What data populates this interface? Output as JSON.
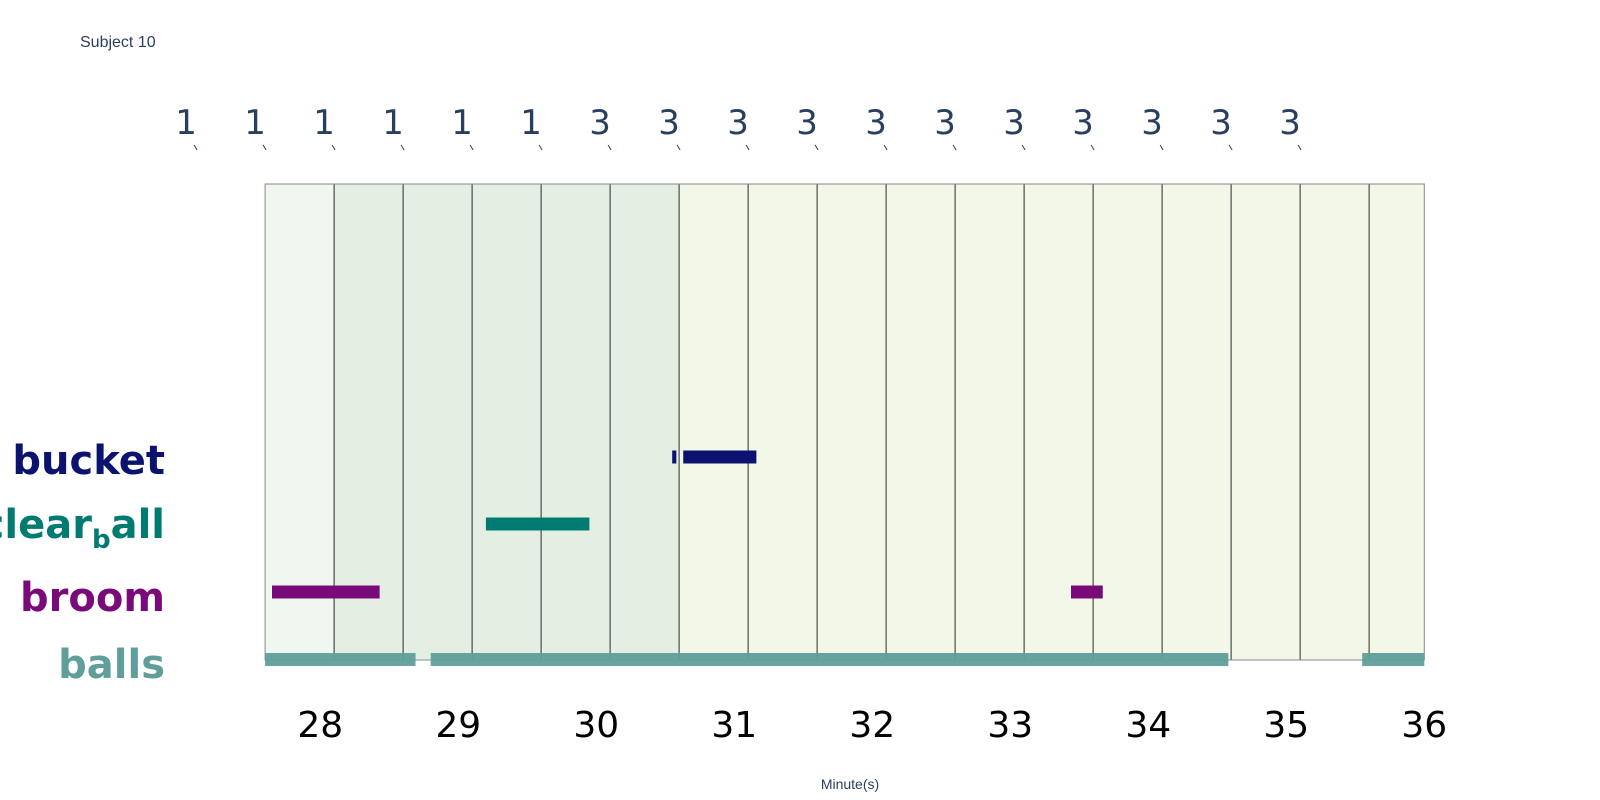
{
  "subject": "Subject 10",
  "chart_data": {
    "type": "timeline",
    "xlabel": "Minute(s)",
    "xlim": [
      27.6,
      36.1
    ],
    "x_ticks": [
      28,
      29,
      30,
      31,
      32,
      33,
      34,
      35,
      36
    ],
    "segments": [
      {
        "start": 27.6,
        "end": 28.1,
        "label": "1",
        "fill": "#f0f7f0"
      },
      {
        "start": 28.1,
        "end": 28.6,
        "label": "1",
        "fill": "#e4efe4"
      },
      {
        "start": 28.6,
        "end": 29.1,
        "label": "1",
        "fill": "#e4efe4"
      },
      {
        "start": 29.1,
        "end": 29.6,
        "label": "1",
        "fill": "#e4efe4"
      },
      {
        "start": 29.6,
        "end": 30.1,
        "label": "1",
        "fill": "#e4efe4"
      },
      {
        "start": 30.1,
        "end": 30.6,
        "label": "1",
        "fill": "#e4efe4"
      },
      {
        "start": 30.6,
        "end": 31.1,
        "label": "3",
        "fill": "#f2f7e7"
      },
      {
        "start": 31.1,
        "end": 31.6,
        "label": "3",
        "fill": "#f2f7e7"
      },
      {
        "start": 31.6,
        "end": 32.1,
        "label": "3",
        "fill": "#f2f7e7"
      },
      {
        "start": 32.1,
        "end": 32.6,
        "label": "3",
        "fill": "#f2f7e7"
      },
      {
        "start": 32.6,
        "end": 33.1,
        "label": "3",
        "fill": "#f2f7e7"
      },
      {
        "start": 33.1,
        "end": 33.6,
        "label": "3",
        "fill": "#f2f7e7"
      },
      {
        "start": 33.6,
        "end": 34.1,
        "label": "3",
        "fill": "#f2f7e7"
      },
      {
        "start": 34.1,
        "end": 34.6,
        "label": "3",
        "fill": "#f2f7e7"
      },
      {
        "start": 34.6,
        "end": 35.1,
        "label": "3",
        "fill": "#f2f7e7"
      },
      {
        "start": 35.1,
        "end": 35.6,
        "label": "3",
        "fill": "#f2f7e7"
      },
      {
        "start": 35.6,
        "end": 36.0,
        "label": "3",
        "fill": "#f2f7e7"
      }
    ],
    "categories": [
      {
        "key": "bucket",
        "label": "bucket",
        "sub": "",
        "label_rest": "",
        "color": "#0c1270",
        "intervals": [
          [
            30.55,
            30.58
          ],
          [
            30.63,
            31.16
          ]
        ]
      },
      {
        "key": "clear_ball",
        "label": "clear",
        "sub": "b",
        "label_rest": "all",
        "color": "#007b72",
        "intervals": [
          [
            29.2,
            29.95
          ]
        ]
      },
      {
        "key": "broom",
        "label": "broom",
        "sub": "",
        "label_rest": "",
        "color": "#7a0a7a",
        "intervals": [
          [
            27.65,
            28.43
          ],
          [
            33.44,
            33.67
          ]
        ]
      },
      {
        "key": "balls",
        "label": "balls",
        "sub": "",
        "label_rest": "",
        "color": "#5f9e9a",
        "intervals": [
          [
            27.6,
            28.69
          ],
          [
            28.8,
            34.58
          ],
          [
            35.55,
            36.0
          ]
        ]
      }
    ]
  }
}
